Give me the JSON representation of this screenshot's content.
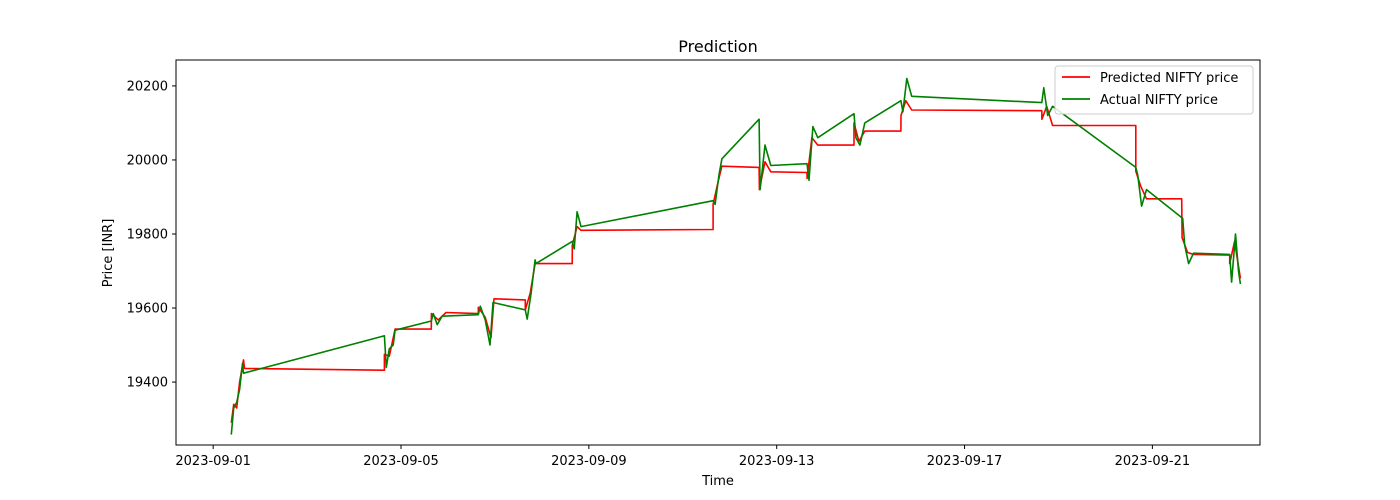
{
  "chart_data": {
    "type": "line",
    "title": "Prediction",
    "xlabel": "Time",
    "ylabel": "Price [INR]",
    "xlim": [
      "2023-08-31T05:00",
      "2023-09-23T07:00"
    ],
    "ylim": [
      19230,
      20270
    ],
    "x_ticks": [
      "2023-09-01",
      "2023-09-05",
      "2023-09-09",
      "2023-09-13",
      "2023-09-17",
      "2023-09-21"
    ],
    "y_ticks": [
      19400,
      19600,
      19800,
      20000,
      20200
    ],
    "grid": false,
    "legend_position": "top-right",
    "series": [
      {
        "name": "Predicted NIFTY price",
        "color": "#ff0000",
        "points": [
          [
            "2023-09-01T09:15",
            19290
          ],
          [
            "2023-09-01T10:30",
            19340
          ],
          [
            "2023-09-01T12:00",
            19330
          ],
          [
            "2023-09-01T13:30",
            19400
          ],
          [
            "2023-09-01T15:30",
            19460
          ],
          [
            "2023-09-01T16:00",
            19437
          ],
          [
            "2023-09-04T15:30",
            19432
          ],
          [
            "2023-09-04T15:31",
            19475
          ],
          [
            "2023-09-04T18:00",
            19470
          ],
          [
            "2023-09-04T21:00",
            19543
          ],
          [
            "2023-09-05T15:30",
            19543
          ],
          [
            "2023-09-05T15:31",
            19585
          ],
          [
            "2023-09-05T19:00",
            19568
          ],
          [
            "2023-09-05T23:00",
            19588
          ],
          [
            "2023-09-06T15:30",
            19585
          ],
          [
            "2023-09-06T15:31",
            19602
          ],
          [
            "2023-09-06T19:00",
            19575
          ],
          [
            "2023-09-06T22:00",
            19520
          ],
          [
            "2023-09-06T23:30",
            19625
          ],
          [
            "2023-09-07T15:30",
            19622
          ],
          [
            "2023-09-07T15:31",
            19595
          ],
          [
            "2023-09-07T18:00",
            19640
          ],
          [
            "2023-09-07T20:30",
            19720
          ],
          [
            "2023-09-08T15:30",
            19720
          ],
          [
            "2023-09-08T15:31",
            19770
          ],
          [
            "2023-09-08T18:00",
            19820
          ],
          [
            "2023-09-08T20:00",
            19810
          ],
          [
            "2023-09-11T15:30",
            19812
          ],
          [
            "2023-09-11T15:31",
            19880
          ],
          [
            "2023-09-11T18:00",
            19940
          ],
          [
            "2023-09-11T20:00",
            19983
          ],
          [
            "2023-09-12T15:00",
            19980
          ],
          [
            "2023-09-12T15:10",
            19920
          ],
          [
            "2023-09-12T18:00",
            19995
          ],
          [
            "2023-09-12T21:00",
            19968
          ],
          [
            "2023-09-13T15:30",
            19966
          ],
          [
            "2023-09-13T15:31",
            19950
          ],
          [
            "2023-09-13T18:00",
            20060
          ],
          [
            "2023-09-13T21:00",
            20040
          ],
          [
            "2023-09-14T15:30",
            20040
          ],
          [
            "2023-09-14T15:31",
            20100
          ],
          [
            "2023-09-14T18:00",
            20050
          ],
          [
            "2023-09-14T21:00",
            20078
          ],
          [
            "2023-09-15T15:30",
            20078
          ],
          [
            "2023-09-15T15:31",
            20120
          ],
          [
            "2023-09-15T18:00",
            20160
          ],
          [
            "2023-09-15T21:00",
            20135
          ],
          [
            "2023-09-18T15:30",
            20133
          ],
          [
            "2023-09-18T15:31",
            20110
          ],
          [
            "2023-09-18T18:00",
            20145
          ],
          [
            "2023-09-18T21:00",
            20093
          ],
          [
            "2023-09-20T15:30",
            20093
          ],
          [
            "2023-09-20T15:31",
            19970
          ],
          [
            "2023-09-20T18:00",
            19930
          ],
          [
            "2023-09-20T21:00",
            19895
          ],
          [
            "2023-09-21T15:00",
            19895
          ],
          [
            "2023-09-21T15:10",
            19790
          ],
          [
            "2023-09-21T18:00",
            19750
          ],
          [
            "2023-09-21T21:00",
            19745
          ],
          [
            "2023-09-22T15:30",
            19743
          ],
          [
            "2023-09-22T15:31",
            19720
          ],
          [
            "2023-09-22T18:00",
            19780
          ],
          [
            "2023-09-22T21:00",
            19680
          ]
        ]
      },
      {
        "name": "Actual NIFTY price",
        "color": "#008000",
        "points": [
          [
            "2023-09-01T09:15",
            19258
          ],
          [
            "2023-09-01T10:30",
            19330
          ],
          [
            "2023-09-01T12:00",
            19345
          ],
          [
            "2023-09-01T13:30",
            19380
          ],
          [
            "2023-09-01T15:00",
            19450
          ],
          [
            "2023-09-01T15:30",
            19424
          ],
          [
            "2023-09-04T15:30",
            19525
          ],
          [
            "2023-09-04T16:30",
            19440
          ],
          [
            "2023-09-04T18:00",
            19490
          ],
          [
            "2023-09-04T20:00",
            19500
          ],
          [
            "2023-09-04T21:00",
            19540
          ],
          [
            "2023-09-05T15:30",
            19565
          ],
          [
            "2023-09-05T16:30",
            19585
          ],
          [
            "2023-09-05T18:30",
            19555
          ],
          [
            "2023-09-05T21:00",
            19578
          ],
          [
            "2023-09-06T15:30",
            19582
          ],
          [
            "2023-09-06T16:30",
            19605
          ],
          [
            "2023-09-06T19:00",
            19568
          ],
          [
            "2023-09-06T21:30",
            19500
          ],
          [
            "2023-09-06T23:00",
            19615
          ],
          [
            "2023-09-07T15:30",
            19595
          ],
          [
            "2023-09-07T16:30",
            19570
          ],
          [
            "2023-09-07T18:30",
            19640
          ],
          [
            "2023-09-07T20:30",
            19730
          ],
          [
            "2023-09-07T21:00",
            19720
          ],
          [
            "2023-09-08T15:30",
            19780
          ],
          [
            "2023-09-08T16:30",
            19760
          ],
          [
            "2023-09-08T18:00",
            19860
          ],
          [
            "2023-09-08T20:00",
            19820
          ],
          [
            "2023-09-11T15:30",
            19890
          ],
          [
            "2023-09-11T16:30",
            19880
          ],
          [
            "2023-09-11T18:30",
            19960
          ],
          [
            "2023-09-11T20:00",
            20003
          ],
          [
            "2023-09-12T15:00",
            20110
          ],
          [
            "2023-09-12T15:30",
            19920
          ],
          [
            "2023-09-12T18:00",
            20040
          ],
          [
            "2023-09-12T21:00",
            19985
          ],
          [
            "2023-09-13T15:30",
            19990
          ],
          [
            "2023-09-13T16:30",
            19945
          ],
          [
            "2023-09-13T18:30",
            20090
          ],
          [
            "2023-09-13T21:00",
            20060
          ],
          [
            "2023-09-14T15:30",
            20125
          ],
          [
            "2023-09-14T16:30",
            20060
          ],
          [
            "2023-09-14T18:30",
            20040
          ],
          [
            "2023-09-14T21:00",
            20100
          ],
          [
            "2023-09-15T15:30",
            20160
          ],
          [
            "2023-09-15T16:30",
            20130
          ],
          [
            "2023-09-15T18:30",
            20220
          ],
          [
            "2023-09-15T21:00",
            20172
          ],
          [
            "2023-09-18T15:30",
            20155
          ],
          [
            "2023-09-18T16:30",
            20195
          ],
          [
            "2023-09-18T18:30",
            20120
          ],
          [
            "2023-09-18T21:00",
            20145
          ],
          [
            "2023-09-20T15:30",
            19980
          ],
          [
            "2023-09-20T16:30",
            19960
          ],
          [
            "2023-09-20T18:30",
            19875
          ],
          [
            "2023-09-20T21:00",
            19920
          ],
          [
            "2023-09-21T15:30",
            19842
          ],
          [
            "2023-09-21T16:30",
            19770
          ],
          [
            "2023-09-21T18:30",
            19720
          ],
          [
            "2023-09-21T21:00",
            19748
          ],
          [
            "2023-09-22T15:30",
            19745
          ],
          [
            "2023-09-22T16:30",
            19670
          ],
          [
            "2023-09-22T18:30",
            19800
          ],
          [
            "2023-09-22T20:00",
            19700
          ],
          [
            "2023-09-22T21:00",
            19665
          ]
        ]
      }
    ]
  }
}
